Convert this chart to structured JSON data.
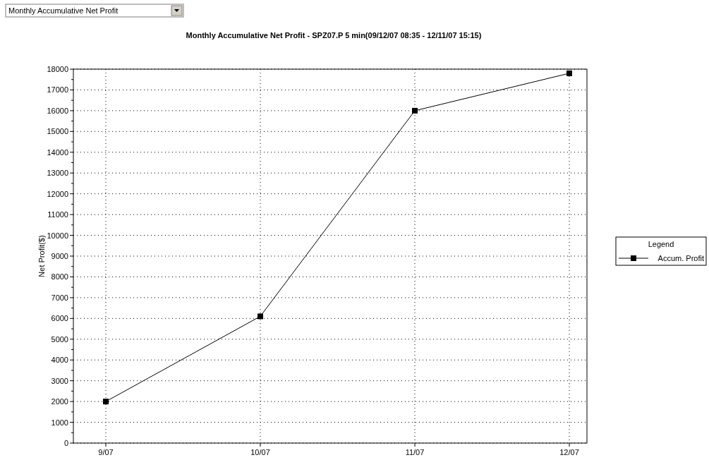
{
  "chart_data": {
    "type": "line",
    "title": "Monthly Accumulative Net Profit - SPZ07.P 5 min(09/12/07 08:35 - 12/11/07 15:15)",
    "ylabel": "Net Profit($)",
    "legend_title": "Legend",
    "annotations": [
      "Monthly Accumulative Net Profit"
    ],
    "categories": [
      "9/07",
      "10/07",
      "11/07",
      "12/07"
    ],
    "series": [
      {
        "name": "Accum. Profit",
        "color": "#000000",
        "values": [
          2000,
          6100,
          16000,
          17800
        ]
      }
    ],
    "ylim": [
      0,
      18000
    ],
    "yticks": [
      0,
      {
        "value": 500,
        "label": null
      },
      1000,
      {
        "value": 1500,
        "label": null
      },
      2000,
      {
        "value": 2500,
        "label": null
      },
      3000,
      {
        "value": 3500,
        "label": null
      },
      4000,
      {
        "value": 4500,
        "label": null
      },
      5000,
      {
        "value": 5500,
        "label": null
      },
      6000,
      {
        "value": 6500,
        "label": null
      },
      7000,
      {
        "value": 7500,
        "label": null
      },
      8000,
      {
        "value": 8500,
        "label": null
      },
      9000,
      {
        "value": 9500,
        "label": null
      },
      10000,
      {
        "value": 10500,
        "label": null
      },
      11000,
      {
        "value": 11500,
        "label": null
      },
      12000,
      {
        "value": 12500,
        "label": null
      },
      13000,
      {
        "value": 13500,
        "label": null
      },
      14000,
      {
        "value": 14500,
        "label": null
      },
      15000,
      {
        "value": 15500,
        "label": null
      },
      16000,
      {
        "value": 16500,
        "label": null
      },
      17000,
      {
        "value": 17500,
        "label": null
      },
      18000
    ],
    "grid": true,
    "legend": "right",
    "marker": "square",
    "line_style": "solid"
  }
}
